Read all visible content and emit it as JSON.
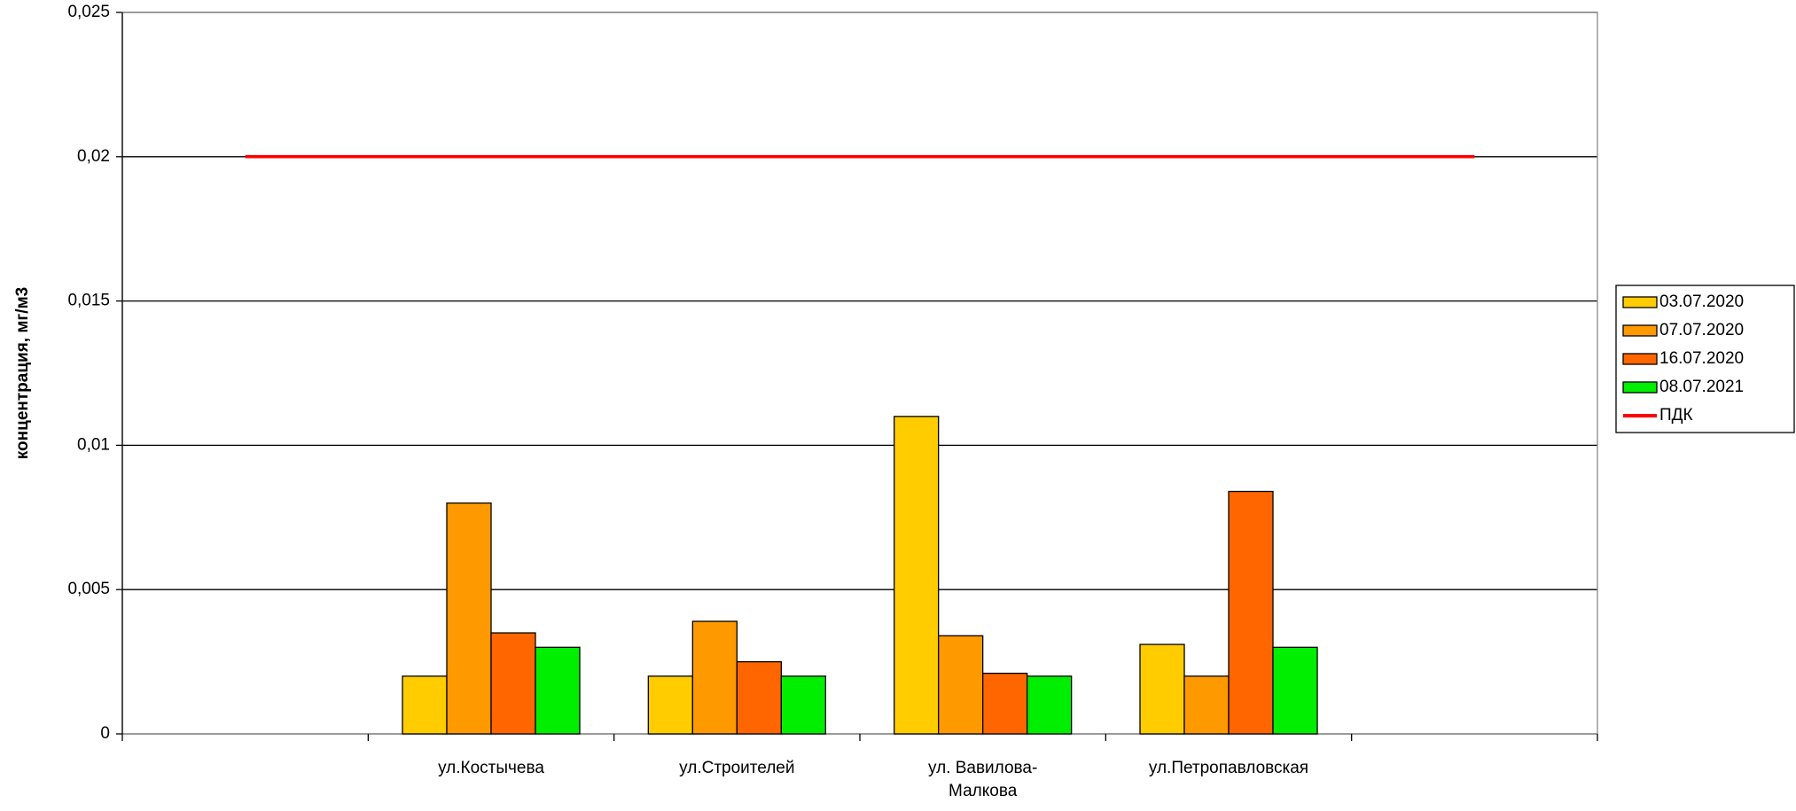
{
  "chart_data": {
    "type": "bar",
    "y_label": "концентрация, мг/м3",
    "categories": [
      null,
      "ул.Костычева",
      "ул.Строителей",
      "ул. Вавилова-Малкова",
      "ул.Петропавловская",
      null
    ],
    "series": [
      {
        "name": "03.07.2020",
        "color": "#ffcc00",
        "values": [
          null,
          0.002,
          0.002,
          0.011,
          0.0031,
          null
        ]
      },
      {
        "name": "07.07.2020",
        "color": "#ff9900",
        "values": [
          null,
          0.008,
          0.0039,
          0.0034,
          0.002,
          null
        ]
      },
      {
        "name": "16.07.2020",
        "color": "#ff6600",
        "values": [
          null,
          0.0035,
          0.0025,
          0.0021,
          0.0084,
          null
        ]
      },
      {
        "name": "08.07.2021",
        "color": "#00ee00",
        "values": [
          null,
          0.003,
          0.002,
          0.002,
          0.003,
          null
        ]
      },
      {
        "name": "ПДК",
        "color": "#ff0000",
        "type": "line",
        "values": [
          0.02,
          0.02,
          0.02,
          0.02,
          0.02,
          0.02
        ]
      }
    ],
    "ylim": [
      0,
      0.025
    ],
    "yticks": [
      0,
      {
        "value": 0.005,
        "label": "0,005"
      },
      {
        "value": 0.01,
        "label": "0,01"
      },
      {
        "value": 0.015,
        "label": "0,015"
      },
      {
        "value": 0.02,
        "label": "0,02"
      },
      {
        "value": 0.025,
        "label": "0,025"
      }
    ],
    "grid": true,
    "legend": "right"
  }
}
